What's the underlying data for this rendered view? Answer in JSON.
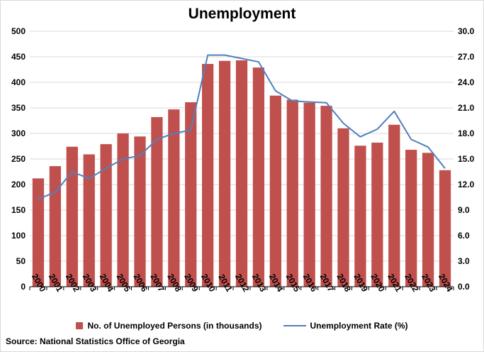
{
  "title": "Unemployment",
  "source": "Source:  National Statistics Office of Georgia",
  "colors": {
    "bar": "#c0504d",
    "line": "#4f81bd",
    "grid": "#d9d9d9",
    "axis": "#000000"
  },
  "chart_data": {
    "type": "bar",
    "title": "Unemployment",
    "categories": [
      "2000",
      "2001",
      "2002",
      "2003",
      "2004",
      "2005",
      "2006",
      "2007",
      "2008",
      "2009",
      "2010",
      "2011",
      "2012",
      "2013",
      "2014",
      "2015",
      "2016",
      "2017",
      "2018",
      "2019",
      "2020",
      "2021",
      "2022",
      "2023",
      "2024"
    ],
    "series": [
      {
        "name": "No. of Unemployed Persons (in thousands)",
        "type": "bar",
        "axis": "left",
        "values": [
          212,
          236,
          274,
          259,
          279,
          300,
          294,
          332,
          347,
          361,
          436,
          442,
          443,
          429,
          374,
          366,
          360,
          354,
          310,
          276,
          282,
          317,
          268,
          262,
          228
        ]
      },
      {
        "name": "Unemployment Rate (%)",
        "type": "line",
        "axis": "right",
        "values": [
          10.3,
          11.1,
          13.5,
          12.7,
          13.9,
          15.0,
          15.4,
          17.3,
          18.0,
          18.4,
          27.2,
          27.2,
          26.8,
          26.4,
          23.0,
          21.8,
          21.7,
          21.6,
          19.2,
          17.6,
          18.5,
          20.6,
          17.3,
          16.4,
          13.9
        ]
      }
    ],
    "yAxisLeft": {
      "min": 0,
      "max": 500,
      "step": 50,
      "ticks": [
        "0",
        "50",
        "100",
        "150",
        "200",
        "250",
        "300",
        "350",
        "400",
        "450",
        "500"
      ]
    },
    "yAxisRight": {
      "min": 0,
      "max": 30,
      "step": 3,
      "ticks": [
        "0.0",
        "3.0",
        "6.0",
        "9.0",
        "12.0",
        "15.0",
        "18.0",
        "21.0",
        "24.0",
        "27.0",
        "30.0"
      ]
    },
    "grid": true,
    "legend": "bottom"
  }
}
